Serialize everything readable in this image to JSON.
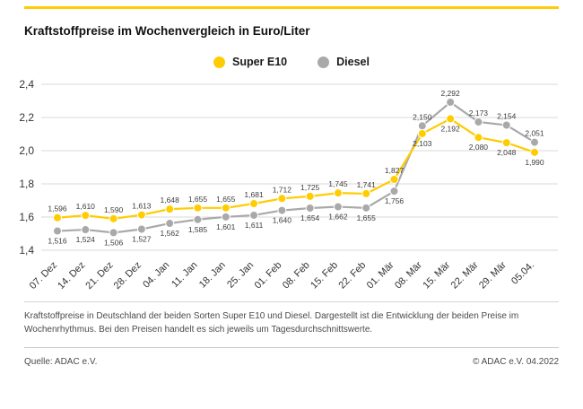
{
  "accent_color": "#FFCC00",
  "title": "Kraftstoffpreise im Wochenvergleich in Euro/Liter",
  "legend": [
    {
      "label": "Super E10",
      "color": "#FFCC00"
    },
    {
      "label": "Diesel",
      "color": "#A9A9A9"
    }
  ],
  "chart_data": {
    "type": "line",
    "title": "Kraftstoffpreise im Wochenvergleich in Euro/Liter",
    "categories": [
      "07. Dez",
      "14. Dez",
      "21. Dez",
      "28. Dez",
      "04. Jan",
      "11. Jan",
      "18. Jan",
      "25. Jan",
      "01. Feb",
      "08. Feb",
      "15. Feb",
      "22. Feb",
      "01. Mär",
      "08. Mär",
      "15. Mär",
      "22. Mär",
      "29. Mär",
      "05.04."
    ],
    "series": [
      {
        "name": "Super E10",
        "color": "#FFCC00",
        "values": [
          1.596,
          1.61,
          1.59,
          1.613,
          1.648,
          1.655,
          1.655,
          1.681,
          1.712,
          1.725,
          1.745,
          1.741,
          1.827,
          2.103,
          2.192,
          2.08,
          2.048,
          1.99
        ]
      },
      {
        "name": "Diesel",
        "color": "#A9A9A9",
        "values": [
          1.516,
          1.524,
          1.506,
          1.527,
          1.562,
          1.585,
          1.601,
          1.611,
          1.64,
          1.654,
          1.662,
          1.655,
          1.756,
          2.15,
          2.292,
          2.173,
          2.154,
          2.051
        ]
      }
    ],
    "ylim": [
      1.4,
      2.4
    ],
    "yticks": [
      1.4,
      1.6,
      1.8,
      2.0,
      2.2,
      2.4
    ],
    "xlabel": "",
    "ylabel": "",
    "grid": true,
    "legend_position": "top",
    "decimal_separator": ","
  },
  "footnote": "Kraftstoffpreise in Deutschland der beiden Sorten Super E10 und Diesel. Dargestellt ist die Entwicklung der beiden Preise im Wochenrhythmus. Bei den Preisen handelt es sich jeweils um Tagesdurchschnittswerte.",
  "source": "Quelle: ADAC e.V.",
  "copyright": "© ADAC e.V. 04.2022"
}
